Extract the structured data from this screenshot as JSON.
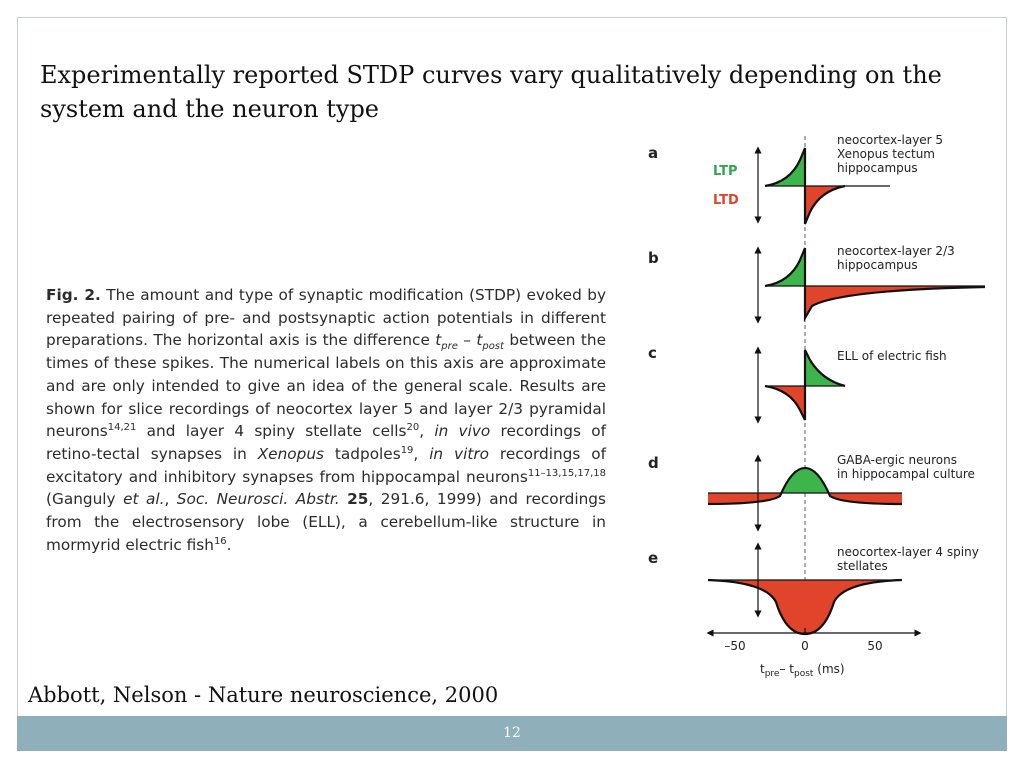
{
  "slide": {
    "title": "Experimentally reported STDP curves vary qualitatively depending on the system and the neuron type",
    "citation": "Abbott, Nelson - Nature neuroscience, 2000",
    "page_number": "12"
  },
  "caption": {
    "label": "Fig. 2.",
    "p1": " The amount and type of synaptic modification (STDP) evoked by repeated pairing of pre- and postsynaptic action potentials in different preparations. The horizontal axis is the difference ",
    "t_pre_t": "t",
    "t_pre_sub": "pre",
    "minus": " – ",
    "t_post_t": "t",
    "t_post_sub": "post",
    "p2": " between the times of these spikes. The numerical labels on this axis are approximate and are only intended to give an idea of the general scale. Results are shown for slice recordings of neocortex layer 5 and layer 2/3 pyramidal neurons",
    "ref1": "14,21",
    "p3": " and layer 4 spiny stellate cells",
    "ref2": "20",
    "p4": ", ",
    "in_vivo": "in vivo",
    "p5": " recordings of retino-tectal synapses in ",
    "xenopus": "Xenopus",
    "p6": " tadpoles",
    "ref3": "19",
    "p7": ", ",
    "in_vitro": "in vitro",
    "p8": " recordings of excitatory and inhibitory synapses from hippocampal neurons",
    "ref4": "11–13,15,17,18",
    "p9": " (Ganguly ",
    "et_al": "et al.",
    "p10": ", ",
    "journal": "Soc. Neurosci. Abstr.",
    "p11": " ",
    "volume": "25",
    "p12": ", 291.6, 1999) and recordings from the electrosensory lobe (ELL), a cerebellum-like structure in mormyrid electric fish",
    "ref5": "16",
    "p13": "."
  },
  "figure": {
    "colors": {
      "ltp": "#3cb64a",
      "ltd": "#e0442a",
      "line": "#111111"
    },
    "ltp_label": "LTP",
    "ltd_label": "LTD",
    "panels": [
      {
        "letter": "a",
        "labels": [
          "neocortex-layer 5",
          "Xenopus tectum",
          "hippocampus"
        ]
      },
      {
        "letter": "b",
        "labels": [
          "neocortex-layer 2/3",
          "hippocampus"
        ]
      },
      {
        "letter": "c",
        "labels": [
          "ELL of electric fish"
        ]
      },
      {
        "letter": "d",
        "labels": [
          "GABA-ergic  neurons",
          "in hippocampal culture"
        ]
      },
      {
        "letter": "e",
        "labels": [
          "neocortex-layer 4 spiny",
          "stellates"
        ]
      }
    ],
    "axis": {
      "ticks": [
        "–50",
        "0",
        "50"
      ],
      "label_t1": "t",
      "label_sub1": "pre",
      "label_mid": "– t",
      "label_sub2": "post",
      "label_unit": " (ms)"
    }
  }
}
